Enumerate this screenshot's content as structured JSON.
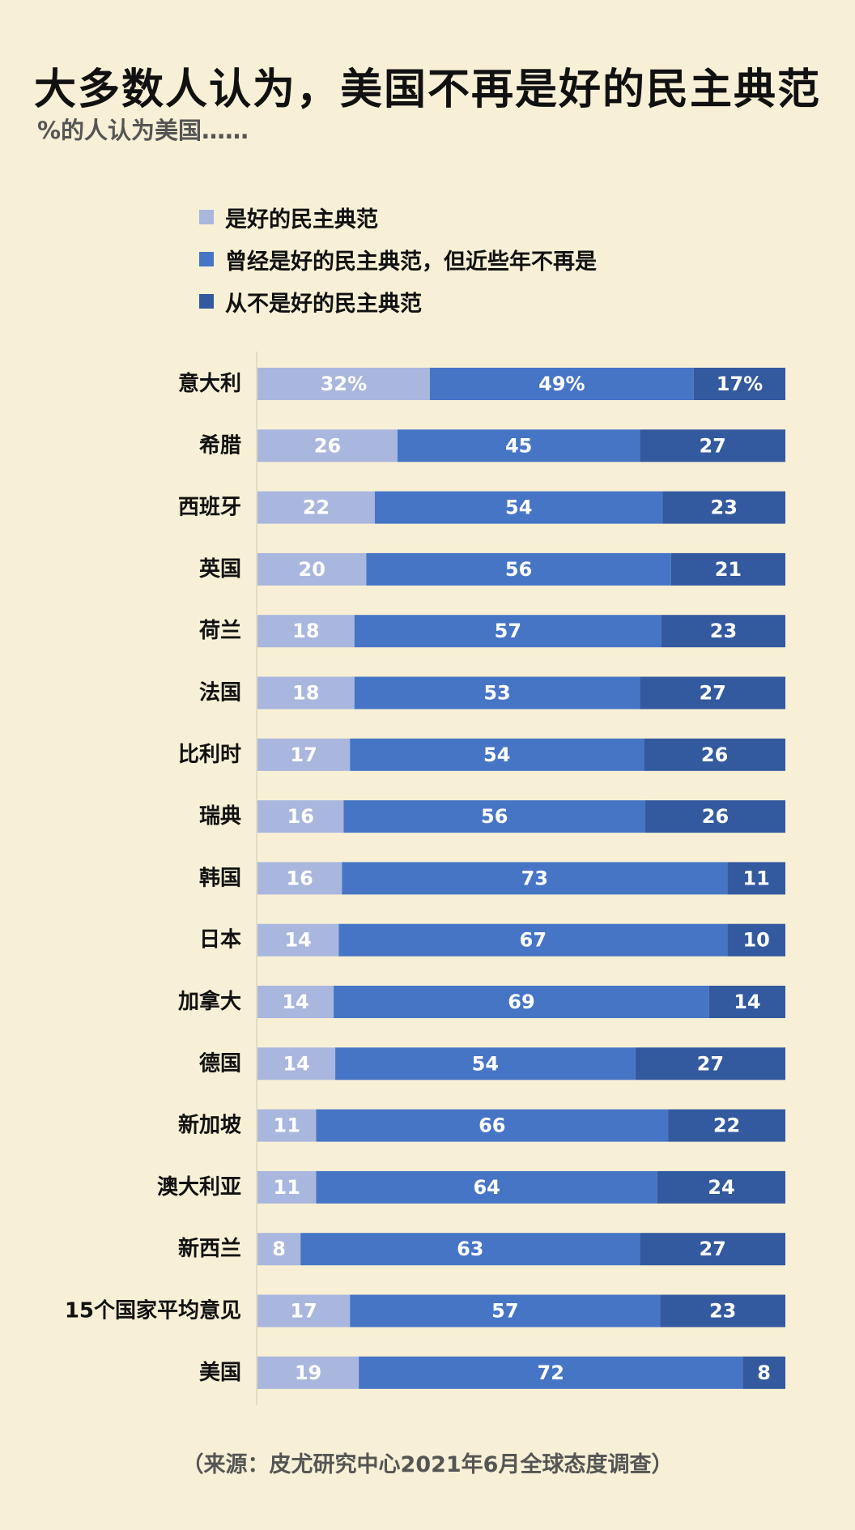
{
  "chart_data": {
    "type": "bar",
    "orientation": "horizontal-stacked-100",
    "title": "大多数人认为，美国不再是好的民主典范",
    "subtitle": "%的人认为美国……",
    "source": "（来源：皮尤研究中心2021年6月全球态度调查）",
    "categories": [
      "意大利",
      "希腊",
      "西班牙",
      "英国",
      "荷兰",
      "法国",
      "比利时",
      "瑞典",
      "韩国",
      "日本",
      "加拿大",
      "德国",
      "新加坡",
      "澳大利亚",
      "新西兰",
      "15个国家平均意见",
      "美国"
    ],
    "series": [
      {
        "name": "是好的民主典范",
        "color": "#a9b7de",
        "values": [
          32,
          26,
          22,
          20,
          18,
          18,
          17,
          16,
          16,
          14,
          14,
          14,
          11,
          11,
          8,
          17,
          19
        ],
        "labels": [
          "32%",
          "26",
          "22",
          "20",
          "18",
          "18",
          "17",
          "16",
          "16",
          "14",
          "14",
          "14",
          "11",
          "11",
          "8",
          "17",
          "19"
        ]
      },
      {
        "name": "曾经是好的民主典范，但近些年不再是",
        "color": "#4675c6",
        "values": [
          49,
          45,
          54,
          56,
          57,
          53,
          54,
          56,
          73,
          67,
          69,
          54,
          66,
          64,
          63,
          57,
          72
        ],
        "labels": [
          "49%",
          "45",
          "54",
          "56",
          "57",
          "53",
          "54",
          "56",
          "73",
          "67",
          "69",
          "54",
          "66",
          "64",
          "63",
          "57",
          "72"
        ]
      },
      {
        "name": "从不是好的民主典范",
        "color": "#33599f",
        "values": [
          17,
          27,
          23,
          21,
          23,
          27,
          26,
          26,
          11,
          10,
          14,
          27,
          22,
          24,
          27,
          23,
          8
        ],
        "labels": [
          "17%",
          "27",
          "23",
          "21",
          "23",
          "27",
          "26",
          "26",
          "11",
          "10",
          "14",
          "27",
          "22",
          "24",
          "27",
          "23",
          "8"
        ]
      }
    ],
    "grid": false,
    "legend": "top-left"
  }
}
